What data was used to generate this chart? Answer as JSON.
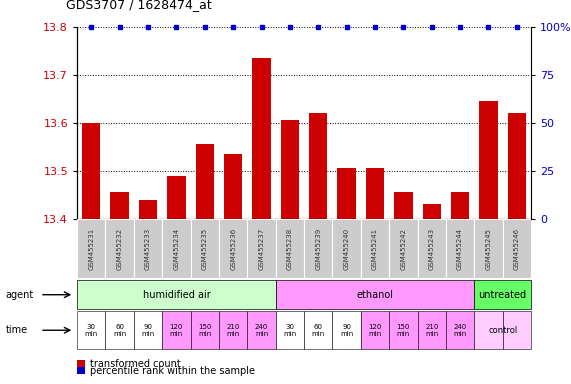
{
  "title": "GDS3707 / 1628474_at",
  "samples": [
    "GSM455231",
    "GSM455232",
    "GSM455233",
    "GSM455234",
    "GSM455235",
    "GSM455236",
    "GSM455237",
    "GSM455238",
    "GSM455239",
    "GSM455240",
    "GSM455241",
    "GSM455242",
    "GSM455243",
    "GSM455244",
    "GSM455245",
    "GSM455246"
  ],
  "bar_values": [
    13.6,
    13.455,
    13.44,
    13.49,
    13.555,
    13.535,
    13.735,
    13.605,
    13.62,
    13.505,
    13.505,
    13.455,
    13.43,
    13.455,
    13.645,
    13.62
  ],
  "ylim": [
    13.4,
    13.8
  ],
  "yticks": [
    13.4,
    13.5,
    13.6,
    13.7,
    13.8
  ],
  "right_yticks": [
    0,
    25,
    50,
    75,
    100
  ],
  "bar_color": "#cc0000",
  "percentile_color": "#0000cc",
  "grid_color": "#000000",
  "agent_groups": [
    {
      "label": "humidified air",
      "start": 0,
      "end": 7,
      "color": "#ccffcc"
    },
    {
      "label": "ethanol",
      "start": 7,
      "end": 14,
      "color": "#ff99ff"
    },
    {
      "label": "untreated",
      "start": 14,
      "end": 16,
      "color": "#66ff66"
    }
  ],
  "time_labels_air": [
    "30\nmin",
    "60\nmin",
    "90\nmin",
    "120\nmin",
    "150\nmin",
    "210\nmin",
    "240\nmin"
  ],
  "time_labels_eth": [
    "30\nmin",
    "60\nmin",
    "90\nmin",
    "120\nmin",
    "150\nmin",
    "210\nmin",
    "240\nmin"
  ],
  "time_white_air": [
    0,
    1,
    2
  ],
  "time_white_eth": [
    0,
    1,
    2
  ],
  "time_color_pink": "#ff99ff",
  "time_color_white": "#ffffff",
  "time_color_light_pink": "#ffccff",
  "label_agent": "agent",
  "label_time": "time",
  "legend_bar_label": "transformed count",
  "legend_pct_label": "percentile rank within the sample",
  "background": "#ffffff",
  "sample_box_color": "#cccccc",
  "sample_text_color": "#333333",
  "n": 16
}
